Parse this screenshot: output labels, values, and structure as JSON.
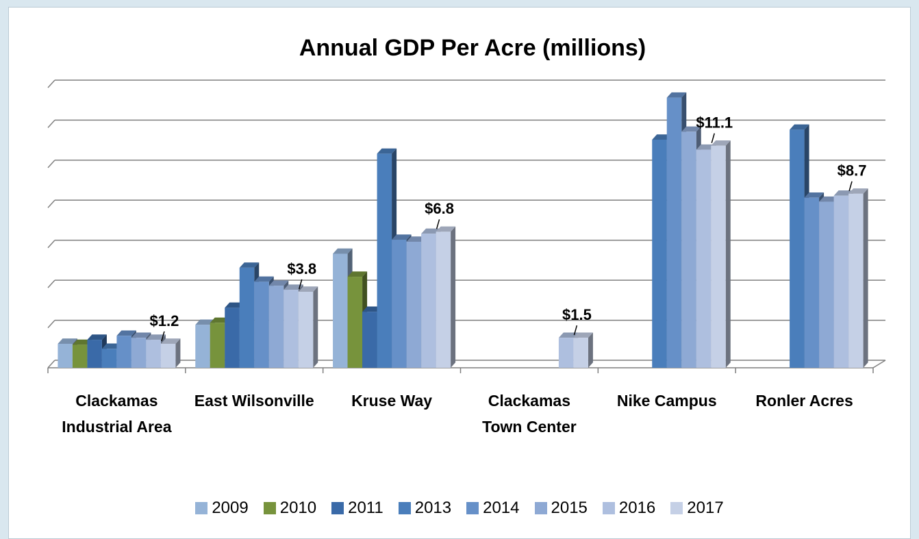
{
  "chart_data": {
    "type": "bar3d",
    "title": "Annual GDP Per Acre (millions)",
    "categories": [
      "Clackamas Industrial Area",
      "East Wilsonville",
      "Kruse Way",
      "Clackamas Town Center",
      "Nike Campus",
      "Ronler Acres"
    ],
    "series": [
      {
        "name": "2009",
        "color": "#95b3d7",
        "values": [
          1.2,
          2.15,
          5.7,
          null,
          null,
          null
        ]
      },
      {
        "name": "2010",
        "color": "#77933c",
        "values": [
          1.15,
          2.25,
          4.55,
          null,
          null,
          null
        ]
      },
      {
        "name": "2011",
        "color": "#3a6aa8",
        "values": [
          1.4,
          3.0,
          2.8,
          null,
          null,
          null
        ]
      },
      {
        "name": "2013",
        "color": "#4a7ebb",
        "values": [
          0.95,
          5.0,
          10.7,
          null,
          11.4,
          11.9
        ]
      },
      {
        "name": "2014",
        "color": "#6690c8",
        "values": [
          1.6,
          4.3,
          6.4,
          null,
          13.5,
          8.5
        ]
      },
      {
        "name": "2015",
        "color": "#8ea9d4",
        "values": [
          1.5,
          4.1,
          6.3,
          null,
          11.8,
          8.3
        ]
      },
      {
        "name": "2016",
        "color": "#aebfdf",
        "values": [
          1.4,
          3.9,
          6.7,
          1.5,
          10.9,
          8.6
        ]
      },
      {
        "name": "2017",
        "color": "#c5d0e6",
        "values": [
          1.2,
          3.8,
          6.8,
          1.5,
          11.1,
          8.7
        ],
        "value_labels": [
          "$1.2",
          "$3.8",
          "$6.8",
          "$1.5",
          "$11.1",
          "$8.7"
        ]
      }
    ],
    "ylim": [
      0,
      14
    ],
    "yticks": [
      0,
      2,
      4,
      6,
      8,
      10,
      12,
      14
    ],
    "grid": true,
    "legend": "bottom"
  }
}
